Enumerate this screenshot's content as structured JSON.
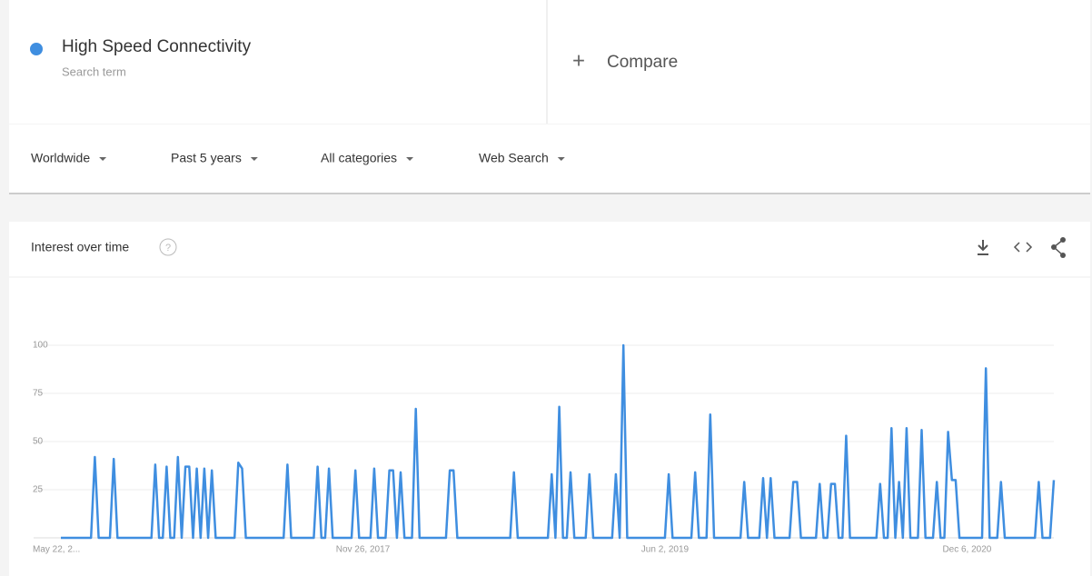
{
  "header": {
    "term_type": "Search term",
    "compare": "Compare",
    "filters": [
      "Worldwide",
      "Past 5 years",
      "All categories",
      "Web Search"
    ]
  },
  "chart_data": {
    "type": "line",
    "title": "Interest over time",
    "categories": [
      "May 22, 2...",
      null,
      null,
      null,
      null,
      null,
      null,
      null,
      null,
      null,
      null,
      null,
      null,
      null,
      null,
      null,
      null,
      null,
      null,
      null,
      null,
      null,
      null,
      null,
      null,
      null,
      null,
      null,
      null,
      null,
      null,
      null,
      null,
      null,
      null,
      null,
      null,
      null,
      null,
      null,
      null,
      null,
      null,
      null,
      null,
      null,
      null,
      null,
      null,
      null,
      null,
      null,
      null,
      null,
      null,
      null,
      null,
      null,
      null,
      null,
      null,
      null,
      null,
      null,
      null,
      null,
      null,
      null,
      null,
      null,
      null,
      null,
      null,
      null,
      null,
      null,
      null,
      null,
      null,
      null,
      "Nov 26, 2017",
      null,
      null,
      null,
      null,
      null,
      null,
      null,
      null,
      null,
      null,
      null,
      null,
      null,
      null,
      null,
      null,
      null,
      null,
      null,
      null,
      null,
      null,
      null,
      null,
      null,
      null,
      null,
      null,
      null,
      null,
      null,
      null,
      null,
      null,
      null,
      null,
      null,
      null,
      null,
      null,
      null,
      null,
      null,
      null,
      null,
      null,
      null,
      null,
      null,
      null,
      null,
      null,
      null,
      null,
      null,
      null,
      null,
      null,
      null,
      null,
      null,
      null,
      null,
      null,
      null,
      null,
      null,
      null,
      null,
      null,
      null,
      null,
      null,
      null,
      null,
      null,
      null,
      null,
      null,
      "Jun 2, 2019",
      null,
      null,
      null,
      null,
      null,
      null,
      null,
      null,
      null,
      null,
      null,
      null,
      null,
      null,
      null,
      null,
      null,
      null,
      null,
      null,
      null,
      null,
      null,
      null,
      null,
      null,
      null,
      null,
      null,
      null,
      null,
      null,
      null,
      null,
      null,
      null,
      null,
      null,
      null,
      null,
      null,
      null,
      null,
      null,
      null,
      null,
      null,
      null,
      null,
      null,
      null,
      null,
      null,
      null,
      null,
      null,
      null,
      null,
      null,
      null,
      null,
      null,
      null,
      null,
      null,
      null,
      null,
      null,
      null,
      null,
      null,
      null,
      null,
      null,
      null,
      null,
      null,
      null,
      null,
      "Dec 6, 2020",
      null,
      null,
      null,
      null,
      null,
      null,
      null,
      null,
      null,
      null,
      null,
      null,
      null,
      null,
      null,
      null,
      null,
      null,
      null,
      null,
      null,
      null,
      null
    ],
    "series": [
      {
        "name": "High Speed Connectivity",
        "color": "#3f8ee0",
        "values": [
          0,
          0,
          0,
          0,
          0,
          0,
          0,
          0,
          0,
          42,
          0,
          0,
          0,
          0,
          41,
          0,
          0,
          0,
          0,
          0,
          0,
          0,
          0,
          0,
          0,
          38,
          0,
          0,
          37,
          0,
          0,
          42,
          0,
          37,
          37,
          0,
          36,
          0,
          36,
          0,
          35,
          0,
          0,
          0,
          0,
          0,
          0,
          39,
          36,
          0,
          0,
          0,
          0,
          0,
          0,
          0,
          0,
          0,
          0,
          0,
          38,
          0,
          0,
          0,
          0,
          0,
          0,
          0,
          37,
          0,
          0,
          36,
          0,
          0,
          0,
          0,
          0,
          0,
          35,
          0,
          0,
          0,
          0,
          36,
          0,
          0,
          0,
          35,
          35,
          0,
          34,
          0,
          0,
          0,
          67,
          0,
          0,
          0,
          0,
          0,
          0,
          0,
          0,
          35,
          35,
          0,
          0,
          0,
          0,
          0,
          0,
          0,
          0,
          0,
          0,
          0,
          0,
          0,
          0,
          0,
          34,
          0,
          0,
          0,
          0,
          0,
          0,
          0,
          0,
          0,
          33,
          0,
          68,
          0,
          0,
          34,
          0,
          0,
          0,
          0,
          33,
          0,
          0,
          0,
          0,
          0,
          0,
          33,
          0,
          100,
          0,
          0,
          0,
          0,
          0,
          0,
          0,
          0,
          0,
          0,
          0,
          33,
          0,
          0,
          0,
          0,
          0,
          0,
          34,
          0,
          0,
          0,
          64,
          0,
          0,
          0,
          0,
          0,
          0,
          0,
          0,
          29,
          0,
          0,
          0,
          0,
          31,
          0,
          31,
          0,
          0,
          0,
          0,
          0,
          29,
          29,
          0,
          0,
          0,
          0,
          0,
          28,
          0,
          0,
          28,
          28,
          0,
          0,
          53,
          0,
          0,
          0,
          0,
          0,
          0,
          0,
          0,
          28,
          0,
          0,
          57,
          0,
          29,
          0,
          57,
          0,
          0,
          0,
          56,
          0,
          0,
          0,
          29,
          0,
          0,
          55,
          30,
          30,
          0,
          0,
          0,
          0,
          0,
          0,
          0,
          88,
          0,
          0,
          0,
          29,
          0,
          0,
          0,
          0,
          0,
          0,
          0,
          0,
          0,
          29,
          0,
          0,
          0,
          30
        ]
      }
    ],
    "ylim": [
      0,
      100
    ],
    "yticks": [
      25,
      50,
      75,
      100
    ],
    "grid": true
  }
}
